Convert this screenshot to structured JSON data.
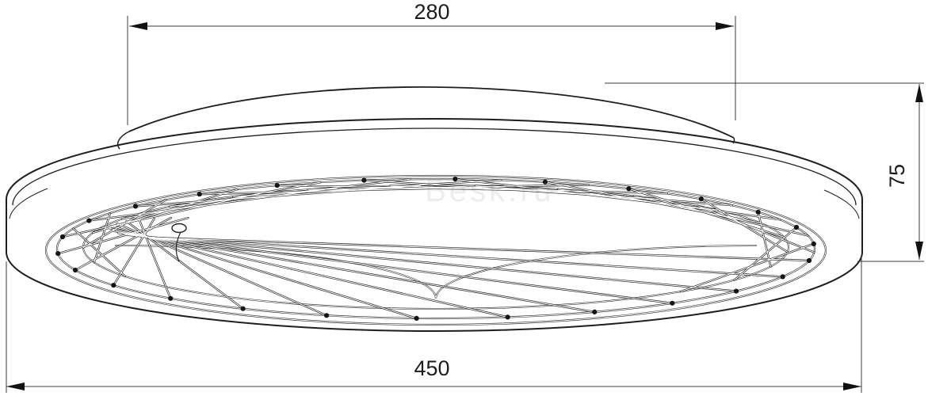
{
  "drawing": {
    "name": "ceiling-fan-light-dimensioned-drawing",
    "labels": {
      "dim_top": "280",
      "dim_right": "75",
      "dim_bottom": "450"
    },
    "watermark": "Besk.ru",
    "colors": {
      "outline": "#1e1e1e",
      "dim_line": "#3c3c3c",
      "arrow": "#111111",
      "background": "#ffffff"
    },
    "cage": {
      "blade_count": 26
    }
  }
}
